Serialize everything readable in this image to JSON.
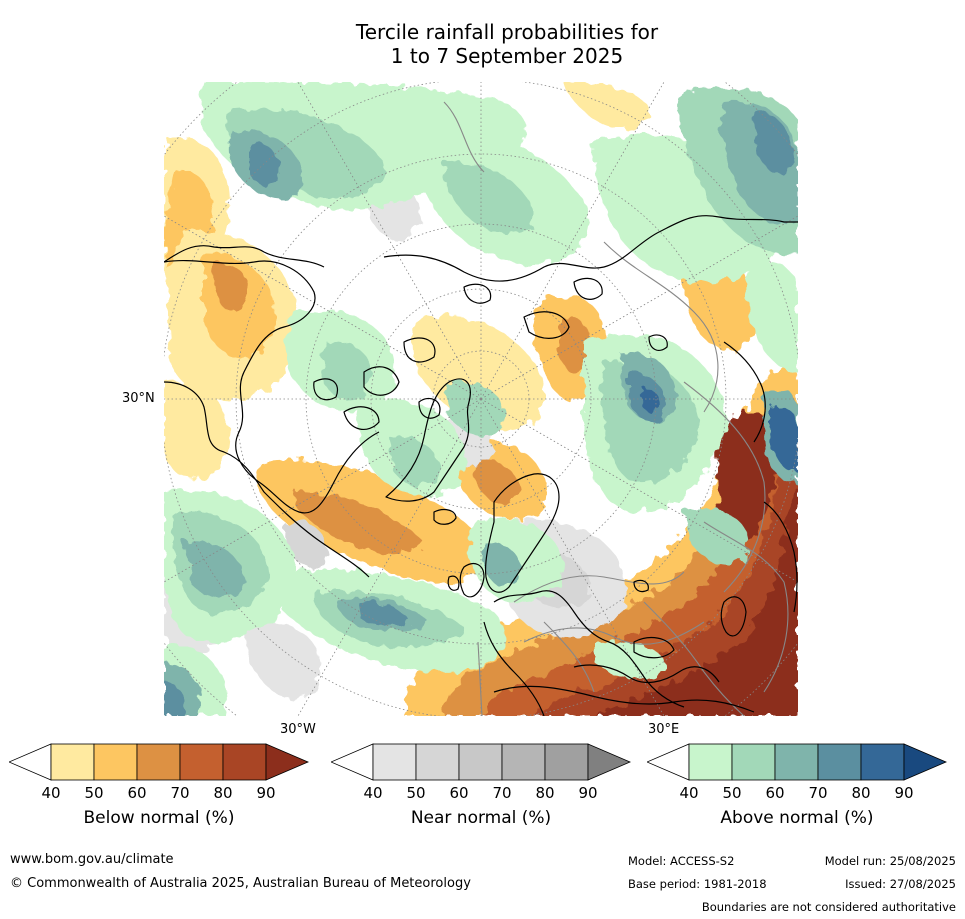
{
  "title": {
    "line1": "Tercile rainfall probabilities for",
    "line2": "1 to 7 September 2025"
  },
  "map": {
    "lat_label": "30°N",
    "lon_labels": {
      "west": "30°W",
      "east": "30°E"
    },
    "colors": {
      "below": [
        "#ffeaa0",
        "#fdc661",
        "#dd9143",
        "#c4602f",
        "#a94525",
        "#8c2e1c"
      ],
      "near": [
        "#e4e4e4",
        "#d6d6d6",
        "#c8c8c8",
        "#b5b5b5",
        "#a0a0a0",
        "#808080"
      ],
      "above": [
        "#c8f5cc",
        "#a2d8b8",
        "#7fb4ab",
        "#5b8fa0",
        "#346897",
        "#19497f"
      ],
      "coastline": "#000000",
      "borders": "#888888"
    }
  },
  "legends": [
    {
      "label": "Below normal (%)",
      "ticks": [
        "40",
        "50",
        "60",
        "70",
        "80",
        "90"
      ]
    },
    {
      "label": "Near normal (%)",
      "ticks": [
        "40",
        "50",
        "60",
        "70",
        "80",
        "90"
      ]
    },
    {
      "label": "Above normal (%)",
      "ticks": [
        "40",
        "50",
        "60",
        "70",
        "80",
        "90"
      ]
    }
  ],
  "footer": {
    "website": "www.bom.gov.au/climate",
    "copyright": "© Commonwealth of Australia 2025, Australian Bureau of Meteorology",
    "model": "Model: ACCESS-S2",
    "base_period": "Base period: 1981-2018",
    "model_run": "Model run: 25/08/2025",
    "issued": "Issued: 27/08/2025",
    "disclaimer": "Boundaries are not considered authoritative"
  }
}
